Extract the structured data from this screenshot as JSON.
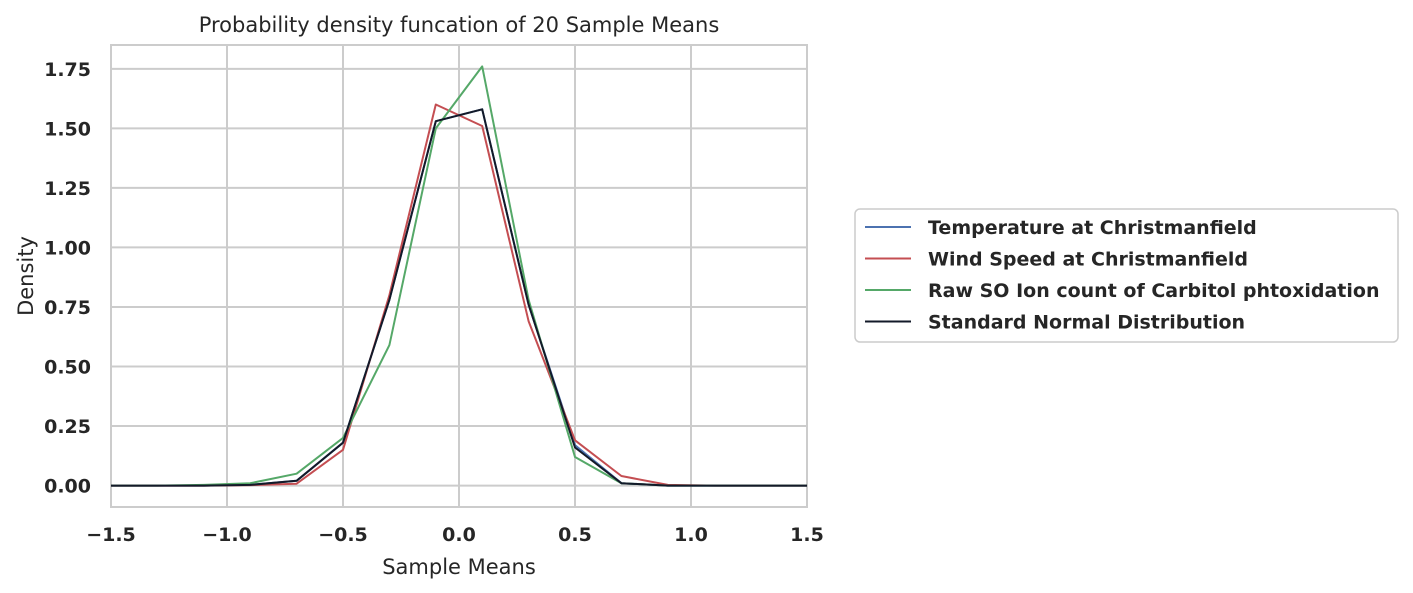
{
  "chart_data": {
    "type": "line",
    "title": "Probability density funcation of 20 Sample Means",
    "xlabel": "Sample Means",
    "ylabel": "Density",
    "xlim": [
      -1.5,
      1.5
    ],
    "ylim": [
      -0.09,
      1.85
    ],
    "x_ticks": [
      "−1.5",
      "−1.0",
      "−0.5",
      "0.0",
      "0.5",
      "1.0",
      "1.5"
    ],
    "y_ticks": [
      "0.00",
      "0.25",
      "0.50",
      "0.75",
      "1.00",
      "1.25",
      "1.50",
      "1.75"
    ],
    "x_tick_values": [
      -1.5,
      -1.0,
      -0.5,
      0.0,
      0.5,
      1.0,
      1.5
    ],
    "y_tick_values": [
      0,
      0.25,
      0.5,
      0.75,
      1.0,
      1.25,
      1.5,
      1.75
    ],
    "grid": true,
    "legend_position": "center-right outside",
    "x": [
      -1.5,
      -1.3,
      -1.1,
      -0.9,
      -0.7,
      -0.5,
      -0.3,
      -0.1,
      0.1,
      0.3,
      0.5,
      0.7,
      0.9,
      1.1,
      1.3,
      1.5
    ],
    "series": [
      {
        "name": "Temperature at Christmanfield",
        "color": "#4c72b0",
        "values": [
          0,
          0,
          0,
          0.003,
          0.02,
          0.18,
          0.78,
          1.53,
          1.58,
          0.76,
          0.17,
          0.01,
          0,
          0,
          0,
          0
        ]
      },
      {
        "name": "Wind Speed at Christmanfield",
        "color": "#c44e52",
        "values": [
          0,
          0,
          0,
          0.002,
          0.008,
          0.15,
          0.8,
          1.6,
          1.51,
          0.69,
          0.19,
          0.04,
          0.003,
          0,
          0,
          0
        ]
      },
      {
        "name": "Raw SO Ion count of Carbitol phtoxidation",
        "color": "#55a868",
        "values": [
          0,
          0,
          0.003,
          0.01,
          0.05,
          0.2,
          0.59,
          1.5,
          1.76,
          0.78,
          0.12,
          0.01,
          0,
          0,
          0,
          0
        ]
      },
      {
        "name": "Standard Normal Distribution",
        "color": "#131a29",
        "values": [
          0,
          0,
          0,
          0.003,
          0.02,
          0.18,
          0.78,
          1.53,
          1.58,
          0.76,
          0.16,
          0.01,
          0,
          0,
          0,
          0
        ]
      }
    ]
  }
}
